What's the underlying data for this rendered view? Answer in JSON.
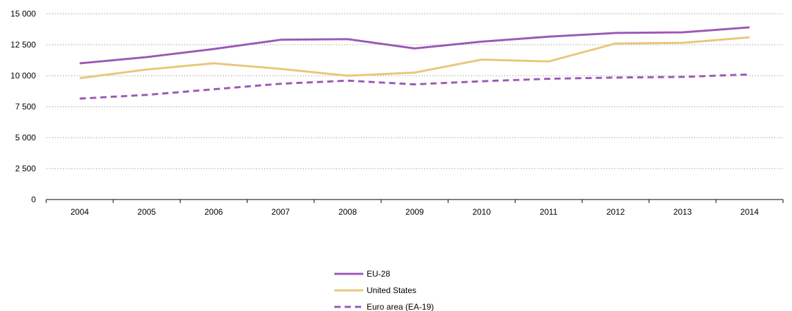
{
  "chart_data": {
    "type": "line",
    "title": "",
    "xlabel": "",
    "ylabel": "",
    "categories": [
      "2004",
      "2005",
      "2006",
      "2007",
      "2008",
      "2009",
      "2010",
      "2011",
      "2012",
      "2013",
      "2014"
    ],
    "ylim": [
      0,
      15000
    ],
    "yticks": [
      0,
      2500,
      5000,
      7500,
      10000,
      12500,
      15000
    ],
    "ytick_labels": [
      "0",
      "2 500",
      "5 000",
      "7 500",
      "10 000",
      "12 500",
      "15 000"
    ],
    "grid": "horizontal dashed",
    "legend_position": "bottom-center",
    "series": [
      {
        "name": "EU-28",
        "color": "#9b59b6",
        "dash": "solid",
        "values": [
          11000,
          11500,
          12150,
          12900,
          12950,
          12200,
          12750,
          13150,
          13450,
          13500,
          13900
        ]
      },
      {
        "name": "United States",
        "color": "#e8c77a",
        "dash": "solid",
        "values": [
          9800,
          10500,
          11000,
          10550,
          10000,
          10250,
          11300,
          11150,
          12600,
          12650,
          13100
        ]
      },
      {
        "name": "Euro area (EA-19)",
        "color": "#9b59b6",
        "dash": "dashed",
        "values": [
          8150,
          8450,
          8900,
          9350,
          9600,
          9300,
          9550,
          9750,
          9850,
          9900,
          10100
        ]
      }
    ]
  }
}
